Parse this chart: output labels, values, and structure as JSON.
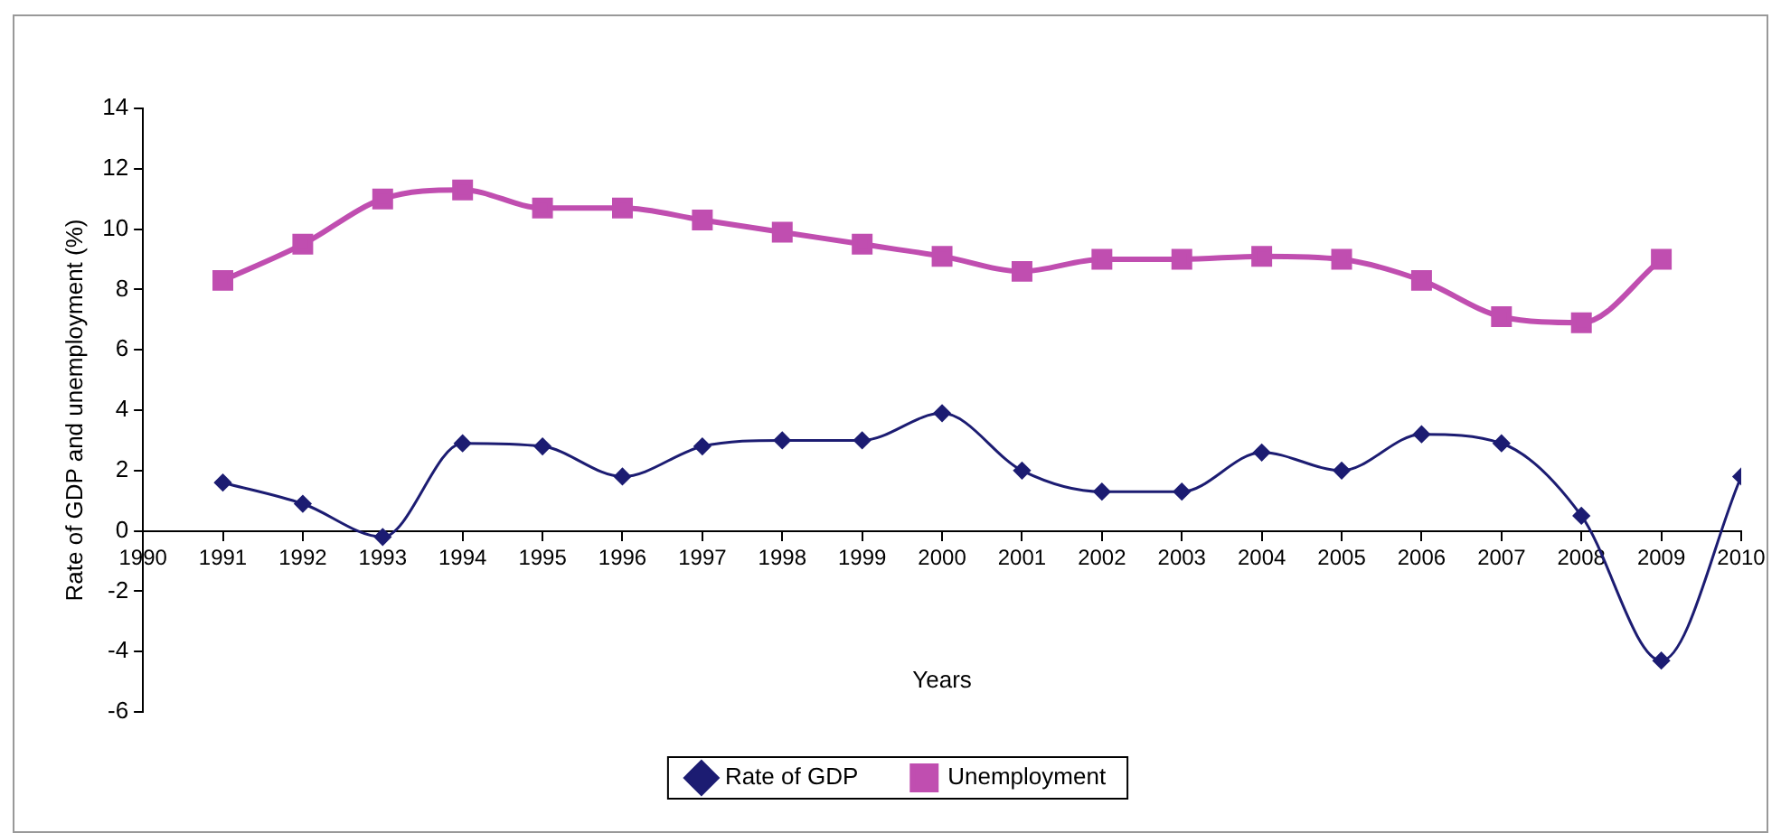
{
  "chart_data": {
    "type": "line",
    "xlabel": "Years",
    "ylabel": "Rate of GDP and unemployment (%)",
    "x": [
      1991,
      1992,
      1993,
      1994,
      1995,
      1996,
      1997,
      1998,
      1999,
      2000,
      2001,
      2002,
      2003,
      2004,
      2005,
      2006,
      2007,
      2008,
      2009,
      2010
    ],
    "series": [
      {
        "name": "Rate of GDP",
        "color": "#1c1c72",
        "marker": "diamond",
        "values": [
          1.6,
          0.9,
          -0.2,
          2.9,
          2.8,
          1.8,
          2.8,
          3.0,
          3.0,
          3.9,
          2.0,
          1.3,
          1.3,
          2.6,
          2.0,
          3.2,
          2.9,
          0.5,
          -4.3,
          1.8
        ]
      },
      {
        "name": "Unemployment",
        "color": "#c04eb0",
        "marker": "square",
        "values": [
          8.3,
          9.5,
          11.0,
          11.3,
          10.7,
          10.7,
          10.3,
          9.9,
          9.5,
          9.1,
          8.6,
          9.0,
          9.0,
          9.1,
          9.0,
          8.3,
          7.1,
          6.9,
          9.0,
          null
        ]
      }
    ],
    "xlim": [
      1990,
      2010
    ],
    "xticks": [
      1990,
      1991,
      1992,
      1993,
      1994,
      1995,
      1996,
      1997,
      1998,
      1999,
      2000,
      2001,
      2002,
      2003,
      2004,
      2005,
      2006,
      2007,
      2008,
      2009,
      2010
    ],
    "ylim": [
      -6,
      14
    ],
    "yticks": [
      -6,
      -4,
      -2,
      0,
      2,
      4,
      6,
      8,
      10,
      12,
      14
    ],
    "grid": false,
    "legend": "bottom",
    "line_style": "solid"
  }
}
